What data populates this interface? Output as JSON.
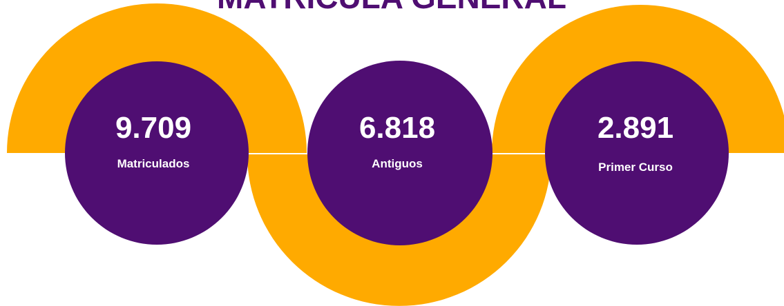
{
  "title": "MATRICULA GENERAL",
  "stats": [
    {
      "value": "9.709",
      "label": "Matriculados"
    },
    {
      "value": "6.818",
      "label": "Antiguos"
    },
    {
      "value": "2.891",
      "label": "Primer Curso"
    }
  ]
}
